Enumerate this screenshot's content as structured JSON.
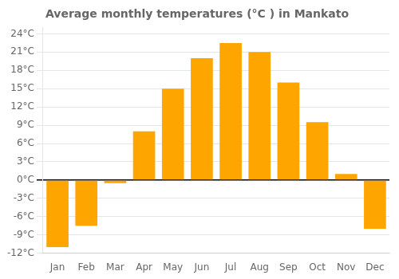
{
  "chart_data": {
    "type": "bar",
    "title": "Average monthly temperatures (°C ) in Mankato",
    "categories": [
      "Jan",
      "Feb",
      "Mar",
      "Apr",
      "May",
      "Jun",
      "Jul",
      "Aug",
      "Sep",
      "Oct",
      "Nov",
      "Dec"
    ],
    "values": [
      -11,
      -7.5,
      -0.5,
      8,
      15,
      20,
      22.5,
      21,
      16,
      9.5,
      1,
      -8
    ],
    "color": "#FFA500",
    "ylim": [
      -12,
      25
    ],
    "yticks": [
      {
        "value": -12,
        "label": "-12°C"
      },
      {
        "value": -9,
        "label": "-9°C"
      },
      {
        "value": -6,
        "label": "-6°C"
      },
      {
        "value": -3,
        "label": "-3°C"
      },
      {
        "value": 0,
        "label": "0°C"
      },
      {
        "value": 3,
        "label": "3°C"
      },
      {
        "value": 6,
        "label": "6°C"
      },
      {
        "value": 9,
        "label": "9°C"
      },
      {
        "value": 12,
        "label": "12°C"
      },
      {
        "value": 15,
        "label": "15°C"
      },
      {
        "value": 18,
        "label": "18°C"
      },
      {
        "value": 21,
        "label": "21°C"
      },
      {
        "value": 24,
        "label": "24°C"
      }
    ],
    "grid": true
  }
}
